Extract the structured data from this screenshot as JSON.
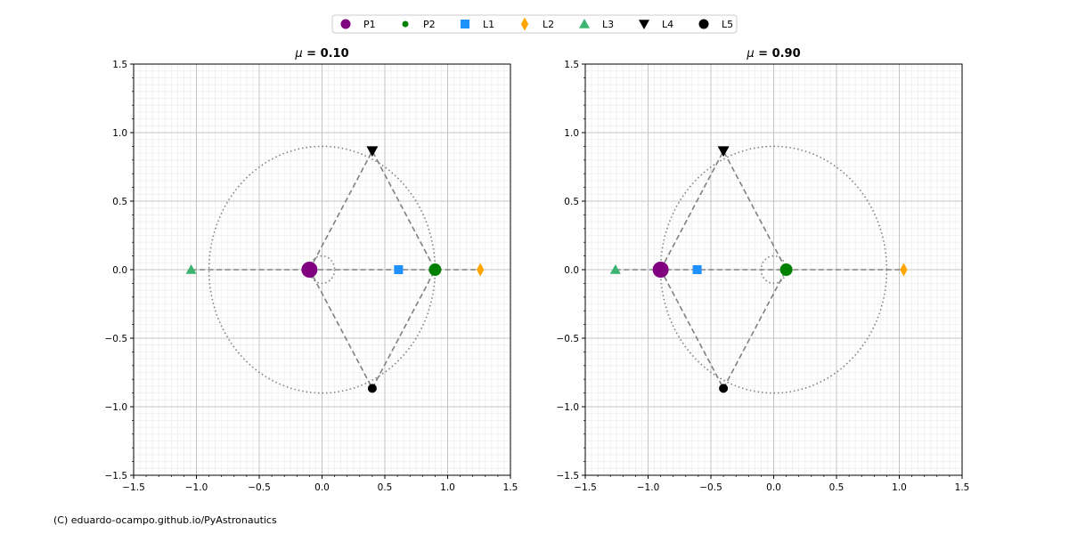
{
  "credit": "(C) eduardo-ocampo.github.io/PyAstronautics",
  "legend": {
    "placement": "top-center",
    "items": [
      {
        "label": "P1",
        "marker": "circle",
        "color": "#800080"
      },
      {
        "label": "P2",
        "marker": "circle-small",
        "color": "#008000"
      },
      {
        "label": "L1",
        "marker": "square",
        "color": "#1e90ff"
      },
      {
        "label": "L2",
        "marker": "diamond",
        "color": "#ffa500"
      },
      {
        "label": "L3",
        "marker": "triangle-up",
        "color": "#3cb371"
      },
      {
        "label": "L4",
        "marker": "triangle-down",
        "color": "#000000"
      },
      {
        "label": "L5",
        "marker": "circle",
        "color": "#000000"
      }
    ]
  },
  "chart_data": [
    {
      "type": "scatter",
      "title_symbol": "μ",
      "title_rest": " = 0.10",
      "mu": 0.1,
      "xlim": [
        -1.5,
        1.5
      ],
      "ylim": [
        -1.5,
        1.5
      ],
      "xticks": [
        "−1.5",
        "−1.0",
        "−0.5",
        "0.0",
        "0.5",
        "1.0",
        "1.5"
      ],
      "yticks": [
        "−1.5",
        "−1.0",
        "−0.5",
        "0.0",
        "0.5",
        "1.0",
        "1.5"
      ],
      "tick_values": [
        -1.5,
        -1.0,
        -0.5,
        0.0,
        0.5,
        1.0,
        1.5
      ],
      "grid": true,
      "points": [
        {
          "label": "P1",
          "x": -0.1,
          "y": 0.0
        },
        {
          "label": "P2",
          "x": 0.9,
          "y": 0.0
        },
        {
          "label": "L1",
          "x": 0.609,
          "y": 0.0
        },
        {
          "label": "L2",
          "x": 1.26,
          "y": 0.0
        },
        {
          "label": "L3",
          "x": -1.042,
          "y": 0.0
        },
        {
          "label": "L4",
          "x": 0.4,
          "y": 0.866
        },
        {
          "label": "L5",
          "x": 0.4,
          "y": -0.866
        }
      ],
      "circles": [
        {
          "label": "P1 orbit",
          "r": 0.1
        },
        {
          "label": "P2 orbit",
          "r": 0.9
        }
      ]
    },
    {
      "type": "scatter",
      "title_symbol": "μ",
      "title_rest": " = 0.90",
      "mu": 0.9,
      "xlim": [
        -1.5,
        1.5
      ],
      "ylim": [
        -1.5,
        1.5
      ],
      "xticks": [
        "−1.5",
        "−1.0",
        "−0.5",
        "0.0",
        "0.5",
        "1.0",
        "1.5"
      ],
      "yticks": [
        "−1.5",
        "−1.0",
        "−0.5",
        "0.0",
        "0.5",
        "1.0",
        "1.5"
      ],
      "tick_values": [
        -1.5,
        -1.0,
        -0.5,
        0.0,
        0.5,
        1.0,
        1.5
      ],
      "grid": true,
      "points": [
        {
          "label": "P1",
          "x": -0.9,
          "y": 0.0
        },
        {
          "label": "P2",
          "x": 0.1,
          "y": 0.0
        },
        {
          "label": "L1",
          "x": -0.609,
          "y": 0.0
        },
        {
          "label": "L2",
          "x": 1.035,
          "y": 0.0
        },
        {
          "label": "L3",
          "x": -1.26,
          "y": 0.0
        },
        {
          "label": "L4",
          "x": -0.4,
          "y": 0.866
        },
        {
          "label": "L5",
          "x": -0.4,
          "y": -0.866
        }
      ],
      "circles": [
        {
          "label": "P2 orbit",
          "r": 0.1
        },
        {
          "label": "P1 orbit",
          "r": 0.9
        }
      ]
    }
  ]
}
